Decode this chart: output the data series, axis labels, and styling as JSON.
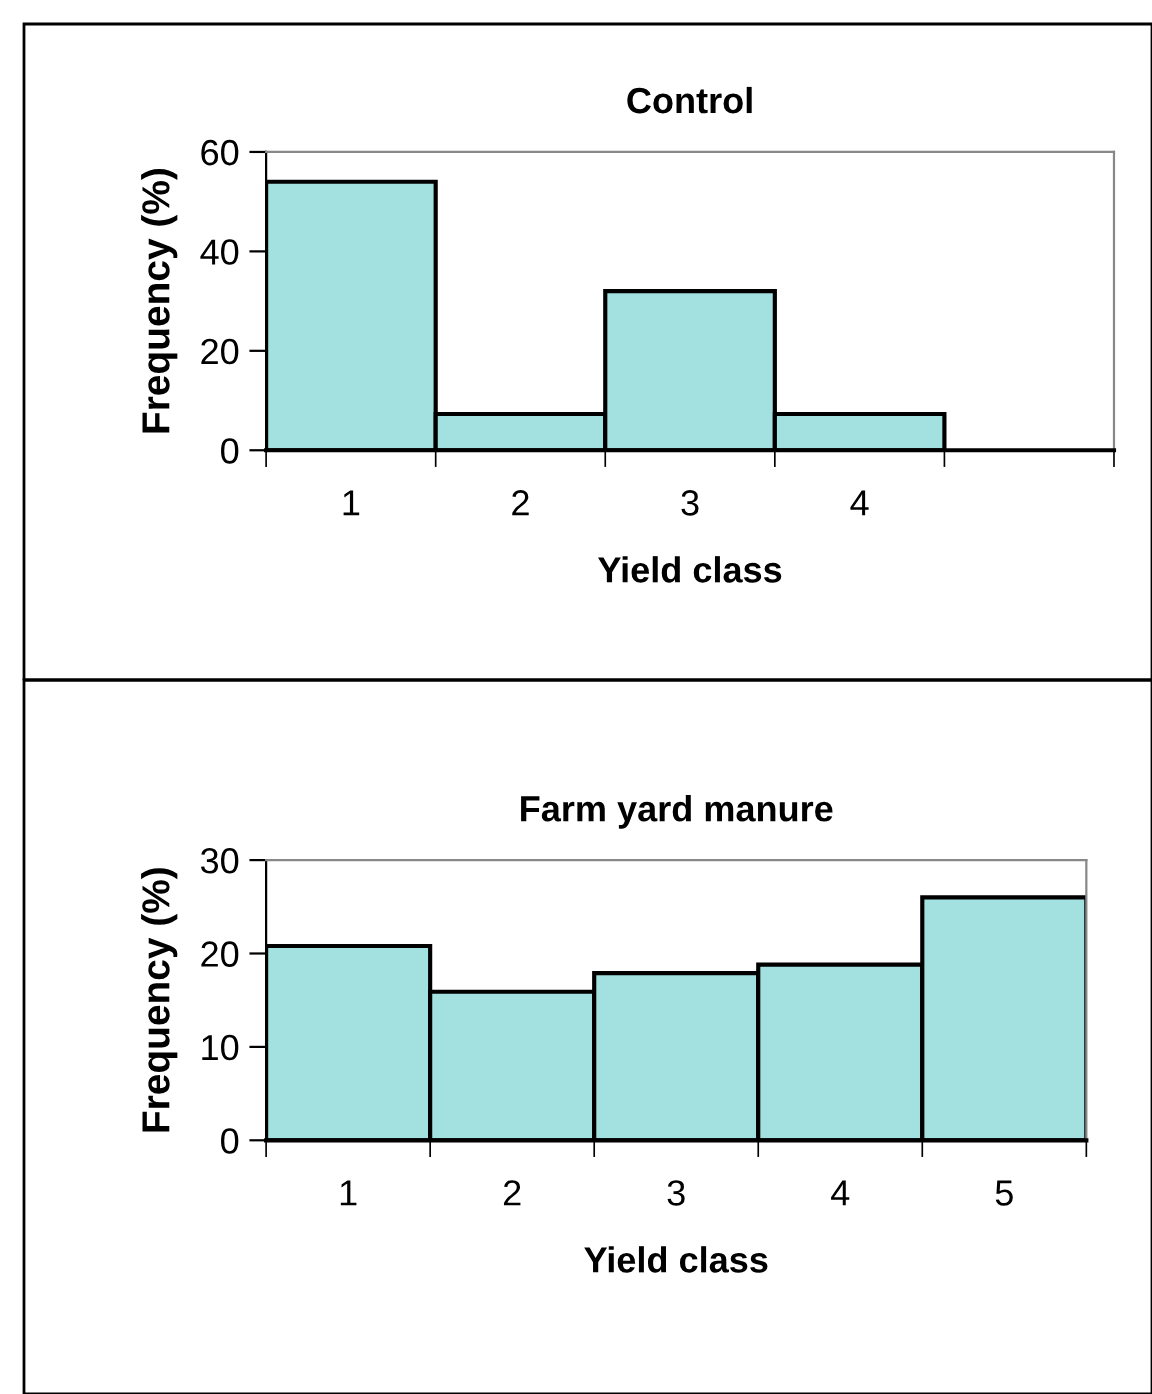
{
  "chart_data": [
    {
      "type": "bar",
      "title": "Control",
      "xlabel": "Yield class",
      "ylabel": "Frequency (%)",
      "categories": [
        "1",
        "2",
        "3",
        "4",
        null
      ],
      "series": [
        {
          "color": "#a3e0e0",
          "values": [
            54,
            7.3,
            32,
            7.3,
            null
          ]
        }
      ],
      "ylim": [
        0,
        60
      ],
      "yticks": [
        0,
        20,
        40,
        60
      ],
      "grid": false,
      "legend": false
    },
    {
      "type": "bar",
      "title": "Farm yard manure",
      "xlabel": "Yield class",
      "ylabel": "Frequency (%)",
      "categories": [
        "1",
        "2",
        "3",
        "4",
        "5"
      ],
      "series": [
        {
          "color": "#a3e0e0",
          "values": [
            20.8,
            15.9,
            17.9,
            18.8,
            26
          ]
        }
      ],
      "ylim": [
        0,
        30
      ],
      "yticks": [
        0,
        10,
        20,
        30
      ],
      "grid": false,
      "legend": false
    }
  ]
}
